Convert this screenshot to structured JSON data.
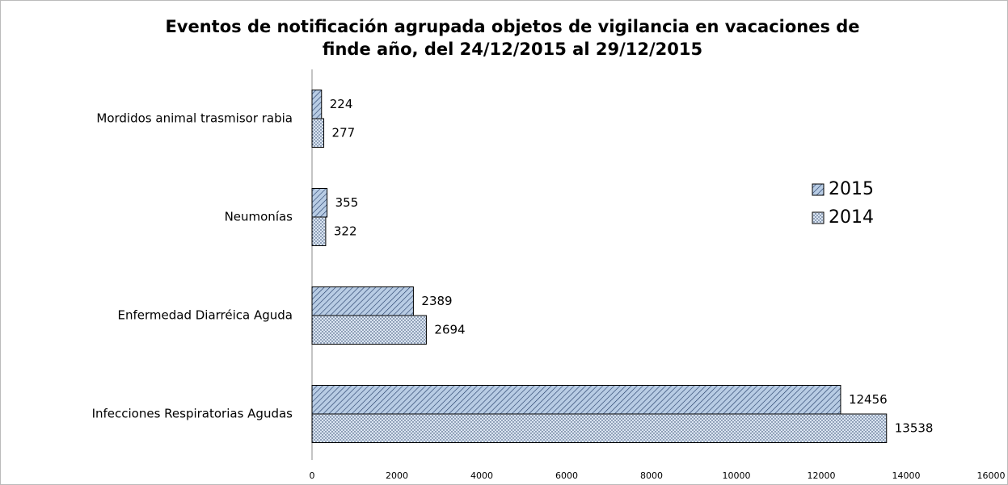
{
  "chart_data": {
    "type": "bar",
    "orientation": "horizontal",
    "title": [
      "Eventos de notificación agrupada objetos de vigilancia en vacaciones de",
      "finde año,   del 24/12/2015 al 29/12/2015"
    ],
    "categories": [
      "Mordidos animal trasmisor rabia",
      "Neumonías",
      "Enfermedad Diarréica Aguda",
      "Infecciones Respiratorias Agudas"
    ],
    "series": [
      {
        "name": "2015",
        "color": "#b8cce4",
        "pattern": "hatch",
        "values": [
          224,
          355,
          2389,
          12456
        ]
      },
      {
        "name": "2014",
        "color": "#dbe5f1",
        "pattern": "dots",
        "values": [
          277,
          322,
          2694,
          13538
        ]
      }
    ],
    "xlim": [
      0,
      16000
    ],
    "xticks": [
      0,
      2000,
      4000,
      6000,
      8000,
      10000,
      12000,
      14000,
      16000
    ],
    "grid": false,
    "legend": "right"
  }
}
